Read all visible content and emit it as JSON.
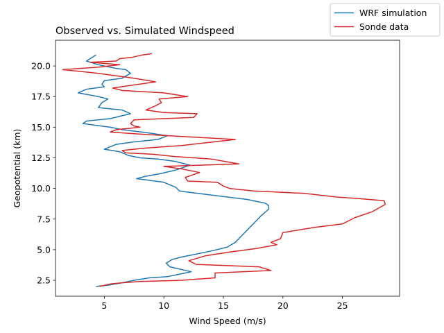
{
  "chart_data": {
    "type": "line",
    "title": "Observed vs. Simulated Windspeed",
    "xlabel": "Wind Speed (m/s)",
    "ylabel": "Geopotential (km)",
    "xlim": [
      0.9,
      29.8
    ],
    "ylim": [
      1.2,
      22.1
    ],
    "xticks": [
      5,
      10,
      15,
      20,
      25
    ],
    "yticks": [
      2.5,
      5.0,
      7.5,
      10.0,
      12.5,
      15.0,
      17.5,
      20.0
    ],
    "ytick_labels": [
      "2.5",
      "5.0",
      "7.5",
      "10.0",
      "12.5",
      "15.0",
      "17.5",
      "20.0"
    ],
    "grid": false,
    "legend_position": "top-right, outside axes",
    "series": [
      {
        "name": "WRF simulation",
        "color": "#1f77b4",
        "points": [
          [
            4.3,
            2.0
          ],
          [
            5.3,
            2.1
          ],
          [
            6.5,
            2.3
          ],
          [
            7.5,
            2.5
          ],
          [
            8.8,
            2.7
          ],
          [
            10.3,
            2.8
          ],
          [
            12.3,
            3.2
          ],
          [
            10.5,
            3.6
          ],
          [
            10.2,
            3.9
          ],
          [
            10.7,
            4.2
          ],
          [
            11.5,
            4.4
          ],
          [
            12.5,
            4.6
          ],
          [
            14.0,
            4.9
          ],
          [
            15.3,
            5.2
          ],
          [
            16.0,
            5.6
          ],
          [
            16.5,
            6.1
          ],
          [
            17.0,
            6.6
          ],
          [
            17.6,
            7.2
          ],
          [
            18.2,
            7.8
          ],
          [
            18.8,
            8.3
          ],
          [
            18.8,
            8.6
          ],
          [
            18.5,
            8.8
          ],
          [
            17.0,
            9.1
          ],
          [
            14.5,
            9.4
          ],
          [
            12.0,
            9.7
          ],
          [
            11.3,
            9.8
          ],
          [
            11.0,
            10.1
          ],
          [
            10.0,
            10.5
          ],
          [
            8.5,
            10.7
          ],
          [
            7.7,
            10.8
          ],
          [
            8.5,
            11.0
          ],
          [
            9.7,
            11.2
          ],
          [
            11.0,
            11.5
          ],
          [
            12.2,
            11.9
          ],
          [
            11.0,
            12.2
          ],
          [
            9.5,
            12.4
          ],
          [
            8.0,
            12.5
          ],
          [
            7.0,
            12.7
          ],
          [
            6.3,
            13.0
          ],
          [
            5.0,
            13.2
          ],
          [
            6.0,
            13.6
          ],
          [
            7.5,
            13.8
          ],
          [
            9.5,
            14.0
          ],
          [
            10.3,
            14.3
          ],
          [
            9.0,
            14.5
          ],
          [
            6.5,
            14.8
          ],
          [
            5.5,
            15.0
          ],
          [
            3.2,
            15.3
          ],
          [
            3.5,
            15.5
          ],
          [
            5.5,
            15.7
          ],
          [
            7.2,
            16.1
          ],
          [
            6.5,
            16.4
          ],
          [
            4.5,
            16.6
          ],
          [
            4.8,
            17.0
          ],
          [
            5.3,
            17.3
          ],
          [
            4.5,
            17.5
          ],
          [
            2.8,
            17.8
          ],
          [
            3.5,
            18.1
          ],
          [
            5.0,
            18.3
          ],
          [
            4.8,
            18.5
          ],
          [
            5.0,
            18.8
          ],
          [
            6.5,
            19.0
          ],
          [
            7.2,
            19.4
          ],
          [
            6.8,
            19.7
          ],
          [
            6.0,
            19.8
          ],
          [
            4.5,
            20.1
          ],
          [
            3.5,
            20.4
          ],
          [
            4.3,
            20.9
          ]
        ]
      },
      {
        "name": "Sonde data",
        "color": "#d62728",
        "points": [
          [
            4.6,
            2.0
          ],
          [
            5.5,
            2.2
          ],
          [
            6.5,
            2.3
          ],
          [
            8.0,
            2.4
          ],
          [
            11.5,
            2.5
          ],
          [
            14.3,
            2.7
          ],
          [
            14.3,
            3.1
          ],
          [
            19.0,
            3.3
          ],
          [
            18.0,
            3.6
          ],
          [
            12.7,
            3.8
          ],
          [
            12.1,
            4.1
          ],
          [
            13.5,
            4.5
          ],
          [
            15.5,
            4.8
          ],
          [
            17.8,
            5.1
          ],
          [
            19.5,
            5.4
          ],
          [
            19.0,
            5.6
          ],
          [
            19.8,
            5.9
          ],
          [
            20.0,
            6.4
          ],
          [
            22.5,
            6.8
          ],
          [
            25.0,
            7.1
          ],
          [
            26.0,
            7.6
          ],
          [
            27.5,
            8.1
          ],
          [
            28.6,
            8.7
          ],
          [
            28.5,
            9.0
          ],
          [
            26.0,
            9.2
          ],
          [
            24.5,
            9.3
          ],
          [
            21.8,
            9.6
          ],
          [
            17.5,
            9.8
          ],
          [
            15.5,
            10.0
          ],
          [
            15.0,
            10.2
          ],
          [
            14.5,
            10.5
          ],
          [
            12.0,
            10.6
          ],
          [
            11.8,
            10.9
          ],
          [
            13.0,
            11.3
          ],
          [
            11.5,
            11.6
          ],
          [
            10.0,
            11.8
          ],
          [
            16.3,
            12.0
          ],
          [
            14.0,
            12.4
          ],
          [
            11.0,
            12.6
          ],
          [
            9.0,
            12.8
          ],
          [
            6.8,
            12.9
          ],
          [
            6.5,
            13.1
          ],
          [
            8.5,
            13.3
          ],
          [
            11.5,
            13.5
          ],
          [
            16.0,
            14.0
          ],
          [
            10.5,
            14.3
          ],
          [
            8.5,
            14.4
          ],
          [
            5.5,
            14.6
          ],
          [
            6.0,
            14.8
          ],
          [
            8.0,
            15.0
          ],
          [
            7.5,
            15.1
          ],
          [
            7.2,
            15.3
          ],
          [
            7.5,
            15.6
          ],
          [
            12.5,
            15.8
          ],
          [
            12.8,
            16.1
          ],
          [
            10.0,
            16.2
          ],
          [
            8.5,
            16.4
          ],
          [
            9.2,
            16.7
          ],
          [
            9.8,
            17.0
          ],
          [
            9.6,
            17.3
          ],
          [
            12.0,
            17.5
          ],
          [
            10.0,
            17.8
          ],
          [
            6.5,
            18.0
          ],
          [
            5.7,
            18.2
          ],
          [
            9.3,
            18.7
          ],
          [
            7.5,
            19.0
          ],
          [
            4.5,
            19.4
          ],
          [
            1.5,
            19.7
          ],
          [
            4.5,
            19.9
          ],
          [
            6.3,
            20.1
          ],
          [
            3.8,
            20.3
          ],
          [
            6.0,
            20.4
          ],
          [
            6.3,
            20.6
          ],
          [
            7.3,
            20.7
          ],
          [
            8.2,
            20.9
          ],
          [
            9.0,
            21.0
          ]
        ]
      }
    ]
  }
}
